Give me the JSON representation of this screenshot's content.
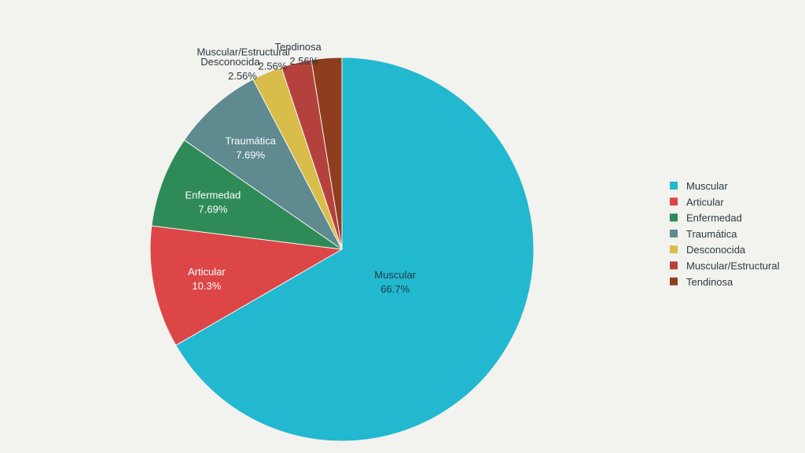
{
  "chart_data": {
    "type": "pie",
    "title": "",
    "categories": [
      "Muscular",
      "Articular",
      "Enfermedad",
      "Traumática",
      "Desconocida",
      "Muscular/Estructural",
      "Tendinosa"
    ],
    "values": [
      66.7,
      10.3,
      7.69,
      7.69,
      2.56,
      2.56,
      2.56
    ],
    "value_labels": [
      "66.7%",
      "10.3%",
      "7.69%",
      "7.69%",
      "2.56%",
      "2.56%",
      "2.56%"
    ],
    "colors": [
      "#22b8cf",
      "#dc4647",
      "#2e8b57",
      "#5e8a90",
      "#d9bd4a",
      "#b5413c",
      "#8f3d1f"
    ],
    "start": "top, clockwise",
    "legend_position": "right"
  }
}
